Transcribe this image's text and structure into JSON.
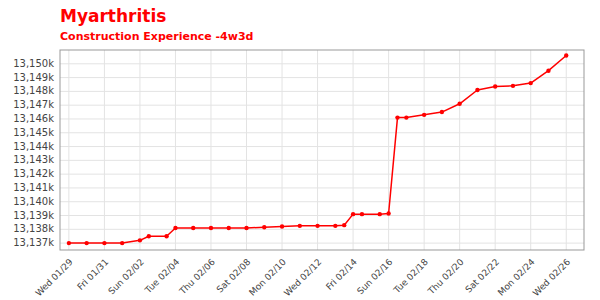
{
  "chart_data": {
    "type": "line",
    "title": "Myarthritis",
    "subtitle": "Construction Experience -4w3d",
    "color": "#ff0000",
    "marker": "circle",
    "grid": true,
    "x": [
      0,
      1,
      2,
      3,
      4,
      4.5,
      5.5,
      6,
      7,
      8,
      9,
      10,
      11,
      12,
      13,
      14,
      15,
      15.5,
      16,
      16.5,
      17.5,
      18,
      18.5,
      19,
      20,
      21,
      22,
      23,
      24,
      25,
      26,
      27,
      28
    ],
    "values": [
      13137.0,
      13137.0,
      13137.0,
      13137.0,
      13137.2,
      13137.5,
      13137.5,
      13138.1,
      13138.1,
      13138.1,
      13138.1,
      13138.1,
      13138.15,
      13138.2,
      13138.25,
      13138.25,
      13138.25,
      13138.3,
      13139.1,
      13139.1,
      13139.1,
      13139.15,
      13146.1,
      13146.1,
      13146.3,
      13146.5,
      13147.1,
      13148.1,
      13148.35,
      13148.4,
      13148.6,
      13149.5,
      13150.6
    ],
    "xlim": [
      -0.5,
      29.0
    ],
    "xticks": [
      {
        "value": 0,
        "label": "Wed 01/29"
      },
      {
        "value": 2,
        "label": "Fri 01/31"
      },
      {
        "value": 4,
        "label": "Sun 02/02"
      },
      {
        "value": 6,
        "label": "Tue 02/04"
      },
      {
        "value": 8,
        "label": "Thu 02/06"
      },
      {
        "value": 10,
        "label": "Sat 02/08"
      },
      {
        "value": 12,
        "label": "Mon 02/10"
      },
      {
        "value": 14,
        "label": "Wed 02/12"
      },
      {
        "value": 16,
        "label": "Fri 02/14"
      },
      {
        "value": 18,
        "label": "Sun 02/16"
      },
      {
        "value": 20,
        "label": "Tue 02/18"
      },
      {
        "value": 22,
        "label": "Thu 02/20"
      },
      {
        "value": 24,
        "label": "Sat 02/22"
      },
      {
        "value": 26,
        "label": "Mon 02/24"
      },
      {
        "value": 28,
        "label": "Wed 02/26"
      }
    ],
    "ylim": [
      13136.5,
      13151.0
    ],
    "yticks": [
      {
        "value": 13137,
        "label": "13,137k"
      },
      {
        "value": 13138,
        "label": "13,138k"
      },
      {
        "value": 13139,
        "label": "13,139k"
      },
      {
        "value": 13140,
        "label": "13,140k"
      },
      {
        "value": 13141,
        "label": "13,141k"
      },
      {
        "value": 13142,
        "label": "13,142k"
      },
      {
        "value": 13143,
        "label": "13,143k"
      },
      {
        "value": 13144,
        "label": "13,144k"
      },
      {
        "value": 13145,
        "label": "13,145k"
      },
      {
        "value": 13146,
        "label": "13,146k"
      },
      {
        "value": 13147,
        "label": "13,147k"
      },
      {
        "value": 13148,
        "label": "13,148k"
      },
      {
        "value": 13149,
        "label": "13,149k"
      },
      {
        "value": 13150,
        "label": "13,150k"
      }
    ]
  }
}
